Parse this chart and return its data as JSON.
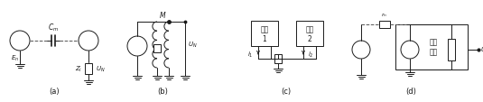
{
  "background_color": "#ffffff",
  "label_a": "(a)",
  "label_b": "(b)",
  "label_c": "(c)",
  "label_d": "(d)",
  "text_Cm": "Cm",
  "text_En": "En",
  "text_Zi": "Zi",
  "text_UN_a": "UN",
  "text_UN_b": "UN",
  "text_UN_d": "UN",
  "text_M": "M",
  "text_circuit1": "电路\n1",
  "text_circuit2": "电路\n2",
  "text_measure": "测量\n电路",
  "text_i1": "i1",
  "text_i2": "i2",
  "text_r": "rn",
  "line_color": "#1a1a1a",
  "dashed_color": "#555555",
  "figsize": [
    5.35,
    1.14
  ],
  "dpi": 100
}
